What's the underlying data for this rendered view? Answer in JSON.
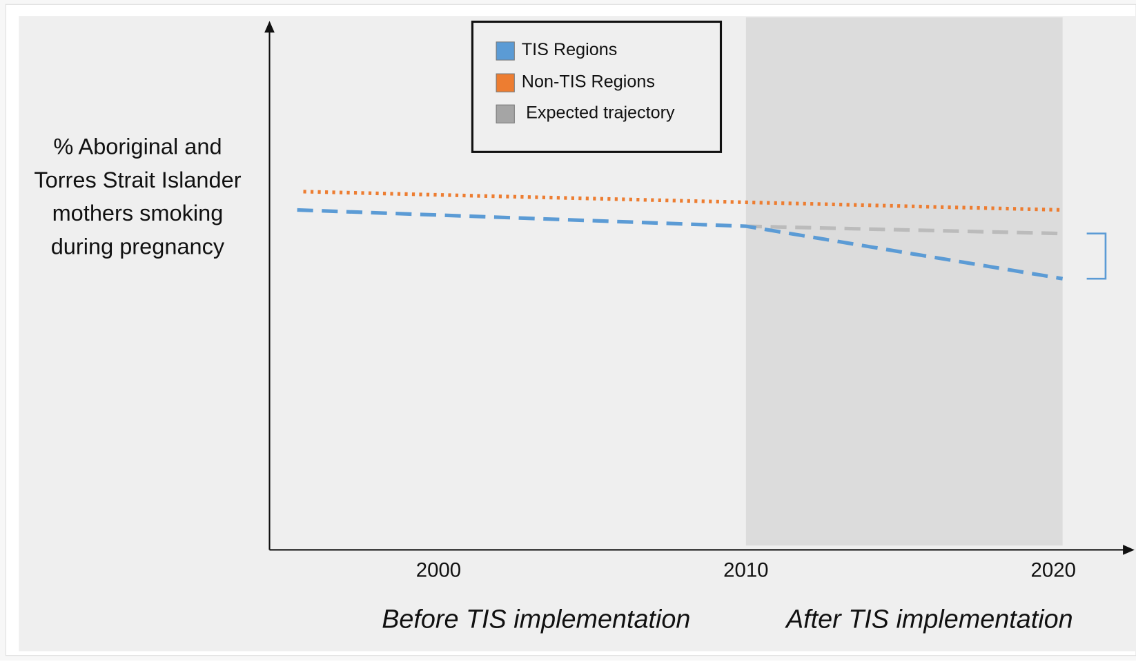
{
  "chart_data": {
    "type": "line",
    "ylabel": "% Aboriginal and Torres Strait Islander mothers smoking during pregnancy",
    "annotations": [
      "Before TIS implementation",
      "After TIS implementation"
    ],
    "xlim": [
      1994.5,
      2022.5
    ],
    "xticks": [
      2000,
      2010,
      2020
    ],
    "ylim": [
      0,
      100
    ],
    "shaded_x": [
      2010,
      2020.3
    ],
    "legend": "top-center",
    "series": [
      {
        "name": "TIS Regions",
        "color": "#5b9bd5",
        "style": "dashed",
        "x": [
          1995.4,
          2010,
          2020.3
        ],
        "values": [
          64.8,
          61.7,
          51.7
        ]
      },
      {
        "name": "Non-TIS Regions",
        "color": "#ed7d31",
        "style": "dotted",
        "x": [
          1995.6,
          2020.3
        ],
        "values": [
          68.3,
          64.8
        ]
      },
      {
        "name": "Expected trajectory",
        "color": "#a5a5a5",
        "style": "dashed",
        "x": [
          2010,
          2020.3
        ],
        "values": [
          61.7,
          60.3
        ]
      }
    ]
  }
}
